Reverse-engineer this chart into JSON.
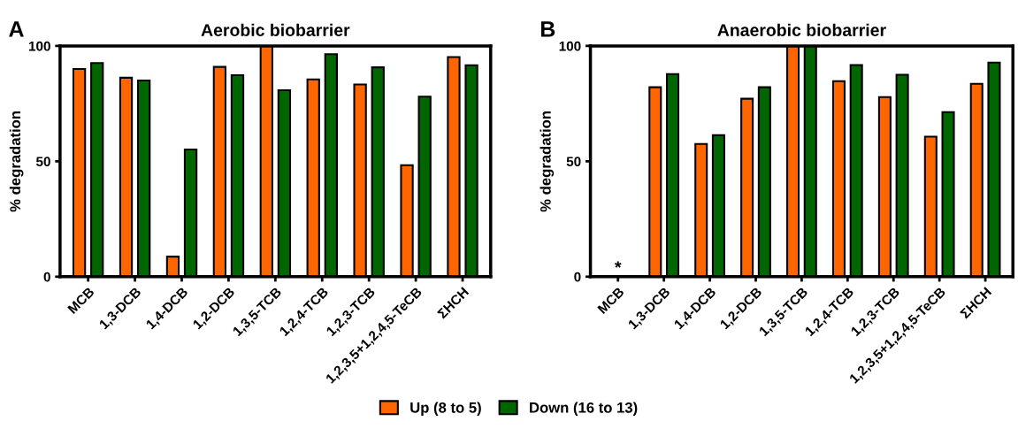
{
  "chart_data": [
    {
      "type": "bar",
      "title": "Aerobic biobarrier",
      "ylabel": "% degradation",
      "annotations": [
        "A"
      ],
      "categories": [
        "MCB",
        "1,3-DCB",
        "1,4-DCB",
        "1,2-DCB",
        "1,3,5-TCB",
        "1,2,4-TCB",
        "1,2,3-TCB",
        "1,2,3,5+1,2,4,5-TeCB",
        "ΣHCH"
      ],
      "series": [
        {
          "name": "Up (8 to 5)",
          "color": "#ff6600",
          "values": [
            90,
            86.2,
            8.7,
            90.9,
            100,
            85.5,
            83.3,
            48.3,
            95.2
          ]
        },
        {
          "name": "Down (16 to 13)",
          "color": "#006600",
          "values": [
            92.6,
            85,
            55.1,
            87.3,
            80.8,
            96.4,
            90.7,
            78,
            91.6
          ]
        }
      ],
      "ylim": [
        0,
        100
      ],
      "yticks": [
        0,
        50,
        100
      ],
      "grid": false,
      "legend": "bottom"
    },
    {
      "type": "bar",
      "title": "Anaerobic biobarrier",
      "ylabel": "% degradation",
      "annotations": [
        "B",
        "*"
      ],
      "categories": [
        "MCB",
        "1,3-DCB",
        "1,4-DCB",
        "1,2-DCB",
        "1,3,5-TCB",
        "1,2,4-TCB",
        "1,2,3-TCB",
        "1,2,3,5+1,2,4,5-TeCB",
        "ΣHCH"
      ],
      "series": [
        {
          "color": "#ff6600",
          "values": [
            null,
            82.1,
            57.5,
            77.1,
            100,
            84.7,
            77.8,
            60.7,
            83.6
          ]
        },
        {
          "color": "#006600",
          "values": [
            null,
            87.8,
            61.3,
            82.1,
            100,
            91.7,
            87.5,
            71.3,
            92.8
          ]
        }
      ],
      "ylim": [
        0,
        100
      ],
      "yticks": [
        0,
        50,
        100
      ],
      "grid": false,
      "legend": false
    }
  ]
}
